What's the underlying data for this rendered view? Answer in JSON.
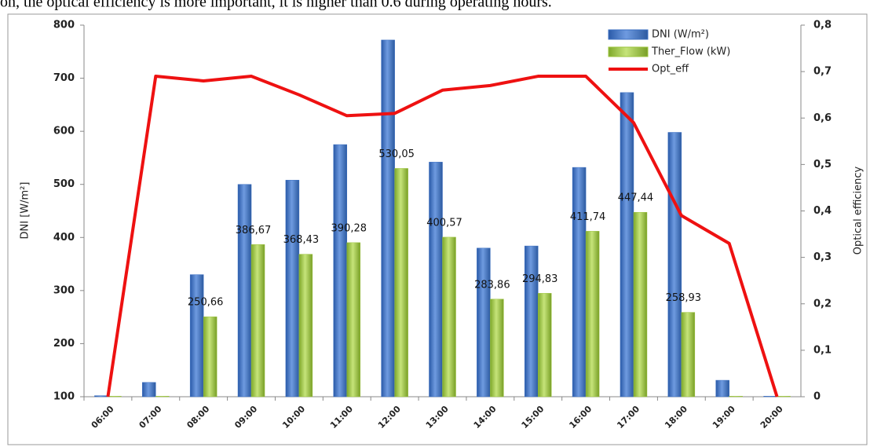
{
  "caption": "on, the optical efficiency is more important, it is higher than 0.6 during operating hours.",
  "chart_data": {
    "type": "bar-line",
    "ylabel": "DNI [W/m²]",
    "y2label": "Optical efficiency",
    "categories": [
      "06:00",
      "07:00",
      "08:00",
      "09:00",
      "10:00",
      "11:00",
      "12:00",
      "13:00",
      "14:00",
      "15:00",
      "16:00",
      "17:00",
      "18:00",
      "19:00",
      "20:00"
    ],
    "series": [
      {
        "name": "DNI (W/m²)",
        "type": "bar",
        "color": "#3b6fc2",
        "values": [
          102,
          127,
          330,
          500,
          508,
          575,
          772,
          542,
          380,
          384,
          532,
          673,
          598,
          131,
          101
        ]
      },
      {
        "name": "Ther_Flow (kW)",
        "type": "bar",
        "color": "#9cc43e",
        "values": [
          101,
          101,
          250.66,
          386.67,
          368.43,
          390.28,
          530.05,
          400.57,
          283.86,
          294.83,
          411.74,
          447.44,
          258.93,
          101,
          101
        ],
        "value_labels": [
          null,
          null,
          "250,66",
          "386,67",
          "368,43",
          "390,28",
          "530,05",
          "400,57",
          "283,86",
          "294,83",
          "411,74",
          "447,44",
          "258,93",
          null,
          null
        ]
      },
      {
        "name": "Opt_eff",
        "type": "line",
        "axis": "y2",
        "color": "#ee1111",
        "values": [
          0,
          0.69,
          0.68,
          0.69,
          0.65,
          0.605,
          0.61,
          0.66,
          0.67,
          0.69,
          0.69,
          0.59,
          0.39,
          0.33,
          0
        ]
      }
    ],
    "ylim": [
      100,
      800
    ],
    "yticks": [
      100,
      200,
      300,
      400,
      500,
      600,
      700,
      800
    ],
    "y2lim": [
      0,
      0.8
    ],
    "y2ticks": [
      0,
      {
        "value": 0.1,
        "label": "0,1"
      },
      {
        "value": 0.2,
        "label": "0,2"
      },
      {
        "value": 0.3,
        "label": "0,3"
      },
      {
        "value": 0.4,
        "label": "0,4"
      },
      {
        "value": 0.5,
        "label": "0,5"
      },
      {
        "value": 0.6,
        "label": "0,6"
      },
      {
        "value": 0.7,
        "label": "0,7"
      },
      {
        "value": 0.8,
        "label": "0,8"
      }
    ],
    "legend": "top-right",
    "grid": false
  }
}
